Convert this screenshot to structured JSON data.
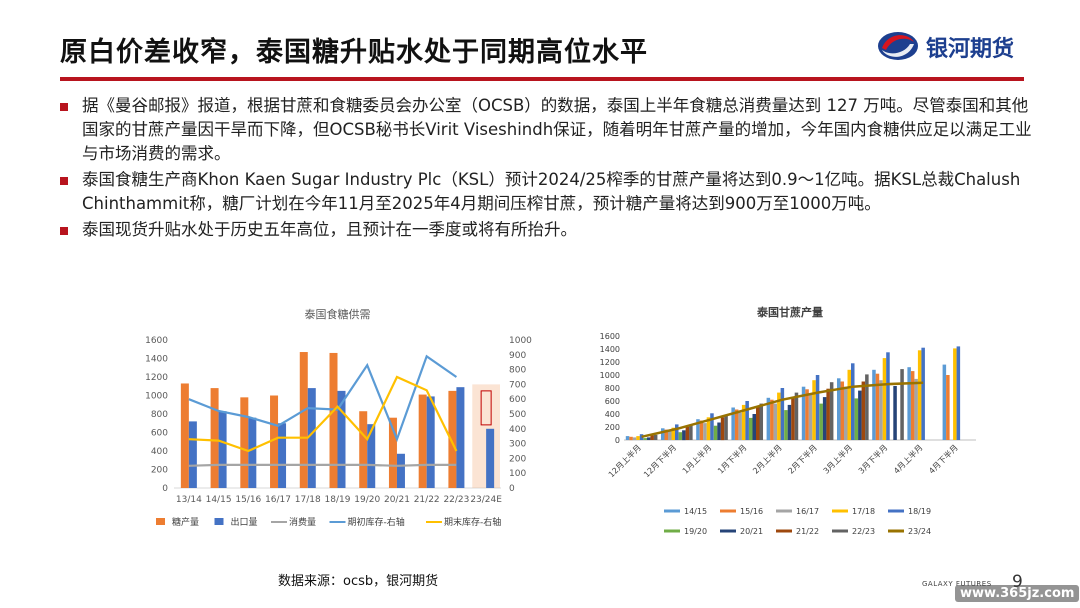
{
  "header": {
    "title": "原白价差收窄，泰国糖升贴水处于同期高位水平",
    "logo_text": "银河期货",
    "logo_icon": "galaxy-swirl-icon"
  },
  "bullets": [
    "据《曼谷邮报》报道，根据甘蔗和食糖委员会办公室（OCSB）的数据，泰国上半年食糖总消费量达到 127 万吨。尽管泰国和其他国家的甘蔗产量因干旱而下降，但OCSB秘书长Virit Viseshindh保证，随着明年甘蔗产量的增加，今年国内食糖供应足以满足工业与市场消费的需求。",
    "泰国食糖生产商Khon Kaen Sugar Industry Plc（KSL）预计2024/25榨季的甘蔗产量将达到0.9～1亿吨。据KSL总裁Chalush Chinthammit称，糖厂计划在今年11月至2025年4月期间压榨甘蔗，预计糖产量将达到900万至1000万吨。",
    "泰国现货升贴水处于历史五年高位，且预计在一季度或将有所抬升。"
  ],
  "footer": {
    "source": "数据来源：ocsb，银河期货",
    "brand": "GALAXY FUTURES",
    "page": "9",
    "watermark": "www.365jz.com"
  },
  "colors": {
    "accent_red": "#b8141e",
    "brand_blue": "#1d3f8f"
  },
  "chart_data": [
    {
      "type": "bar",
      "title": "泰国食糖供需",
      "categories": [
        "13/14",
        "14/15",
        "15/16",
        "16/17",
        "17/18",
        "18/19",
        "19/20",
        "20/21",
        "21/22",
        "22/23",
        "23/24E"
      ],
      "ylim": [
        0,
        1600
      ],
      "yticks": [
        "0",
        "200",
        "400",
        "600",
        "800",
        "1000",
        "1200",
        "1400",
        "1600"
      ],
      "y2lim": [
        0,
        1000
      ],
      "y2ticks": [
        "0",
        "100",
        "200",
        "300",
        "400",
        "500",
        "600",
        "700",
        "800",
        "900",
        "1000"
      ],
      "series": [
        {
          "name": "糖产量",
          "kind": "bar",
          "axis": "left",
          "color": "#ed7d31",
          "values": [
            1130,
            1080,
            980,
            1000,
            1470,
            1460,
            830,
            760,
            1010,
            1050,
            null
          ]
        },
        {
          "name": "出口量",
          "kind": "bar",
          "axis": "left",
          "color": "#4472c4",
          "values": [
            720,
            830,
            760,
            700,
            1080,
            1050,
            690,
            370,
            990,
            1090,
            640
          ]
        },
        {
          "name": "消费量",
          "kind": "line",
          "axis": "left",
          "color": "#a5a5a5",
          "values": [
            240,
            250,
            250,
            250,
            250,
            250,
            250,
            240,
            250,
            250,
            null
          ]
        },
        {
          "name": "期初库存-右轴",
          "kind": "line",
          "axis": "right",
          "color": "#5b9bd5",
          "values": [
            600,
            520,
            480,
            420,
            540,
            530,
            830,
            330,
            890,
            750,
            null
          ]
        },
        {
          "name": "期末库存-右轴",
          "kind": "line",
          "axis": "right",
          "color": "#ffc000",
          "values": [
            330,
            320,
            250,
            340,
            340,
            550,
            330,
            750,
            660,
            250,
            null
          ]
        }
      ],
      "highlight_category": "23/24E"
    },
    {
      "type": "bar",
      "title": "泰国甘蔗产量",
      "categories": [
        "12月上半月",
        "12月下半月",
        "1月上半月",
        "1月下半月",
        "2月上半月",
        "2月下半月",
        "3月上半月",
        "3月下半月",
        "4月上半月",
        "4月下半月"
      ],
      "ylim": [
        0,
        1600
      ],
      "yticks": [
        "0",
        "200",
        "400",
        "600",
        "800",
        "1000",
        "1200",
        "1400",
        "1600"
      ],
      "series": [
        {
          "name": "14/15",
          "kind": "bar",
          "color": "#5b9bd5",
          "values": [
            60,
            180,
            320,
            500,
            650,
            820,
            950,
            1080,
            1120,
            1160
          ]
        },
        {
          "name": "15/16",
          "kind": "bar",
          "color": "#ed7d31",
          "values": [
            50,
            160,
            300,
            470,
            620,
            780,
            900,
            1020,
            1060,
            1000
          ]
        },
        {
          "name": "16/17",
          "kind": "bar",
          "color": "#a5a5a5",
          "values": [
            40,
            140,
            260,
            420,
            560,
            700,
            820,
            920,
            940,
            null
          ]
        },
        {
          "name": "17/18",
          "kind": "bar",
          "color": "#ffc000",
          "values": [
            60,
            190,
            350,
            540,
            730,
            920,
            1080,
            1260,
            1380,
            1410
          ]
        },
        {
          "name": "18/19",
          "kind": "bar",
          "color": "#4472c4",
          "values": [
            90,
            240,
            410,
            600,
            800,
            1000,
            1180,
            1350,
            1420,
            1440
          ]
        },
        {
          "name": "19/20",
          "kind": "bar",
          "color": "#70ad47",
          "values": [
            30,
            120,
            220,
            340,
            460,
            560,
            640,
            null,
            null,
            null
          ]
        },
        {
          "name": "20/21",
          "kind": "bar",
          "color": "#264478",
          "values": [
            40,
            150,
            270,
            400,
            540,
            660,
            760,
            830,
            null,
            null
          ]
        },
        {
          "name": "21/22",
          "kind": "bar",
          "color": "#9e480e",
          "values": [
            70,
            200,
            350,
            510,
            660,
            790,
            900,
            null,
            null,
            null
          ]
        },
        {
          "name": "22/23",
          "kind": "bar",
          "color": "#636363",
          "values": [
            80,
            230,
            390,
            560,
            730,
            890,
            1010,
            1090,
            null,
            null
          ]
        },
        {
          "name": "23/24",
          "kind": "line",
          "color": "#997300",
          "values": [
            50,
            170,
            320,
            470,
            620,
            730,
            820,
            860,
            880,
            null
          ]
        }
      ]
    }
  ]
}
